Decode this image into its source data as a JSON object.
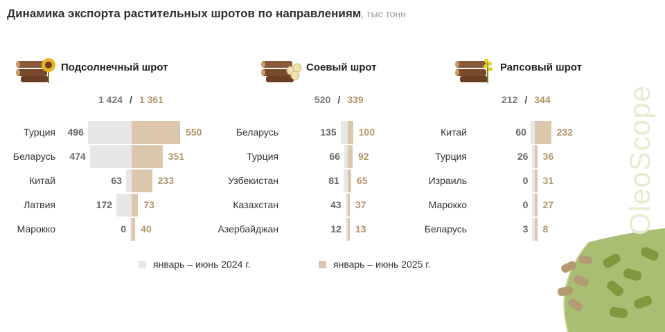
{
  "title": "Динамика экспорта растительных шротов по направлениям",
  "unit": ", тыс тонн",
  "brand": "OleoScope",
  "legend": {
    "items": [
      {
        "label": "январь – июнь 2024 г.",
        "color": "#e7e7e7"
      },
      {
        "label": "январь – июнь 2025 г.",
        "color": "#dcc7ad"
      }
    ]
  },
  "chart_data": [
    {
      "type": "bar",
      "title": "Подсолнечный шрот",
      "icon": "sunflower-logs-icon",
      "totals": {
        "y2024": "1 424",
        "y2025": "1 361"
      },
      "categories": [
        "Турция",
        "Беларусь",
        "Китай",
        "Латвия",
        "Марокко"
      ],
      "series": [
        {
          "name": "январь – июнь 2024 г.",
          "values": [
            496,
            474,
            63,
            172,
            0
          ]
        },
        {
          "name": "январь – июнь 2025 г.",
          "values": [
            550,
            351,
            233,
            73,
            40
          ]
        }
      ]
    },
    {
      "type": "bar",
      "title": "Соевый шрот",
      "icon": "soybean-logs-icon",
      "totals": {
        "y2024": "520",
        "y2025": "339"
      },
      "categories": [
        "Беларусь",
        "Турция",
        "Узбекистан",
        "Казахстан",
        "Азербайджан"
      ],
      "series": [
        {
          "name": "январь – июнь 2024 г.",
          "values": [
            135,
            66,
            81,
            43,
            12
          ]
        },
        {
          "name": "январь – июнь 2025 г.",
          "values": [
            100,
            92,
            65,
            37,
            13
          ]
        }
      ]
    },
    {
      "type": "bar",
      "title": "Рапсовый шрот",
      "icon": "rapeseed-logs-icon",
      "totals": {
        "y2024": "212",
        "y2025": "344"
      },
      "categories": [
        "Китай",
        "Турция",
        "Израиль",
        "Марокко",
        "Беларусь"
      ],
      "series": [
        {
          "name": "январь – июнь 2024 г.",
          "values": [
            60,
            26,
            0,
            0,
            3
          ]
        },
        {
          "name": "январь – июнь 2025 г.",
          "values": [
            232,
            36,
            31,
            27,
            8
          ]
        }
      ]
    }
  ]
}
